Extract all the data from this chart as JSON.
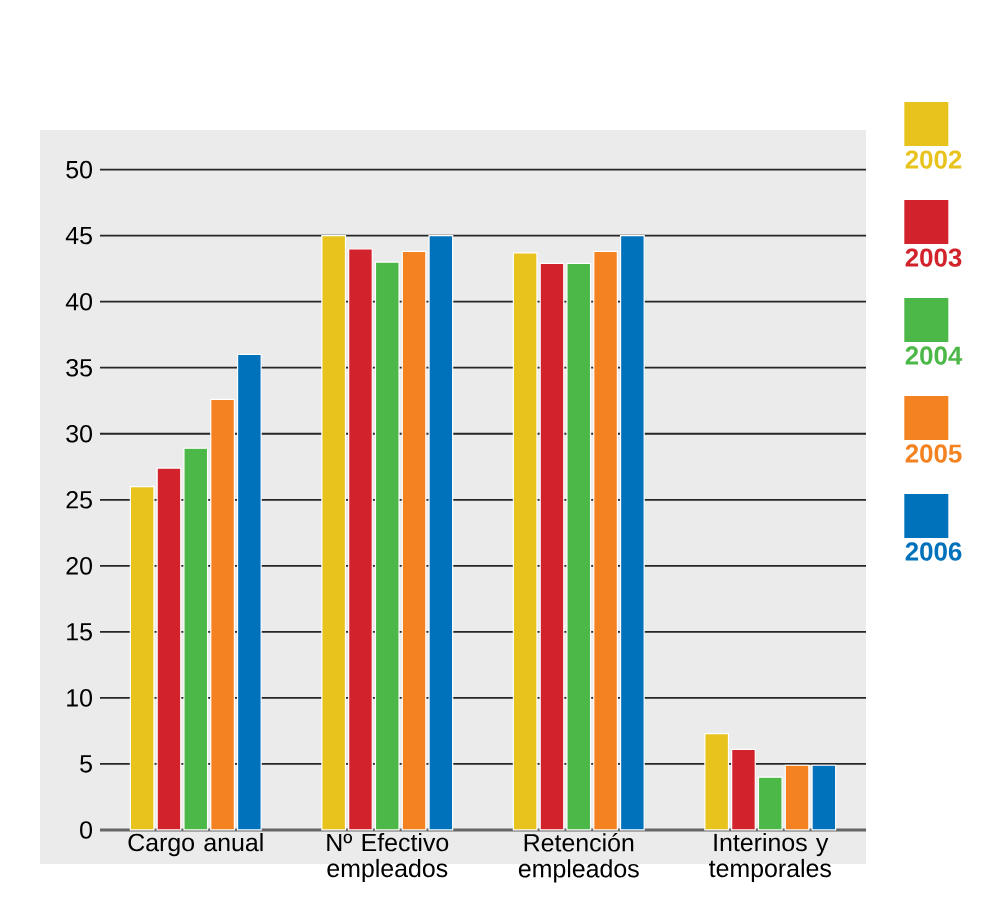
{
  "chart_data": {
    "type": "bar",
    "categories": [
      "Cargo anual",
      "Nº Efectivo empleados",
      "Retención empleados",
      "Interinos y temporales"
    ],
    "series": [
      {
        "name": "2002",
        "color": "#e8c31e",
        "values": [
          26,
          45,
          43.7,
          7.3
        ]
      },
      {
        "name": "2003",
        "color": "#d2232d",
        "values": [
          27.4,
          44,
          42.9,
          6.1
        ]
      },
      {
        "name": "2004",
        "color": "#4cb848",
        "values": [
          28.9,
          43,
          42.9,
          4
        ]
      },
      {
        "name": "2005",
        "color": "#f48221",
        "values": [
          32.6,
          43.8,
          43.8,
          4.9
        ]
      },
      {
        "name": "2006",
        "color": "#0071bb",
        "values": [
          36,
          45,
          45,
          4.9
        ]
      }
    ],
    "ylim": [
      0,
      53
    ],
    "yticks": [
      0,
      5,
      10,
      15,
      20,
      25,
      30,
      35,
      40,
      45,
      50
    ],
    "grid": "y",
    "legend": "right"
  }
}
